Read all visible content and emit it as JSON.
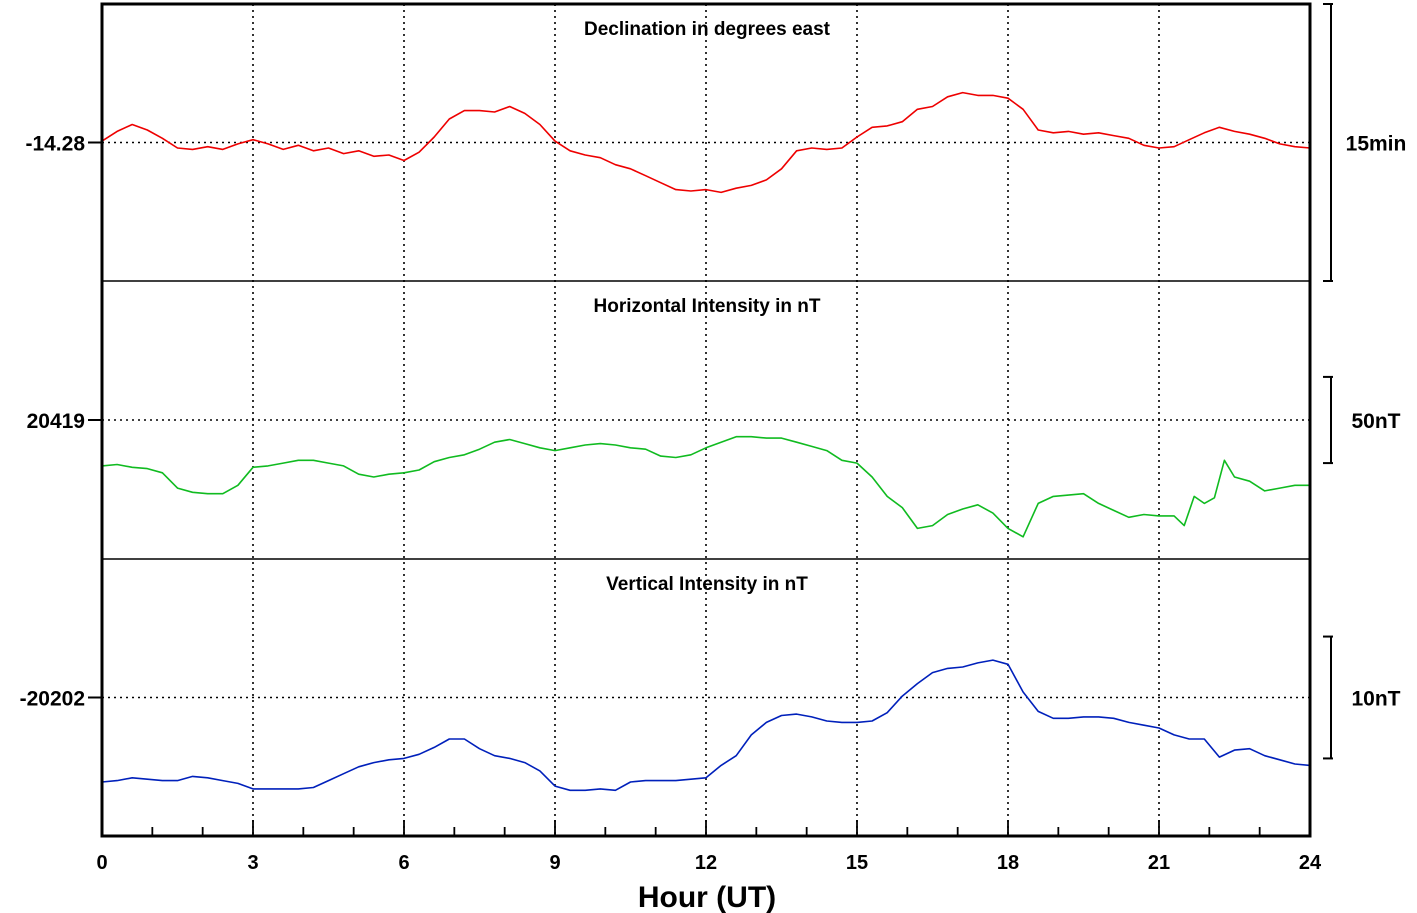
{
  "chart_data": {
    "type": "line",
    "xlabel": "Hour (UT)",
    "xlim": [
      0,
      24
    ],
    "xticks": [
      "0",
      "3",
      "6",
      "9",
      "12",
      "15",
      "18",
      "21",
      "24"
    ],
    "grid": true,
    "panels": [
      {
        "title": "Declination in degrees east",
        "reference_label": "-14.28",
        "scale_label": "15min",
        "color": "#ee0000",
        "yrange": [
          -1,
          1
        ],
        "ref_value": 0,
        "scale_bar": [
          1,
          -1
        ],
        "series": {
          "x": [
            0,
            0.3,
            0.6,
            0.9,
            1.2,
            1.5,
            1.8,
            2.1,
            2.4,
            2.7,
            3,
            3.3,
            3.6,
            3.9,
            4.2,
            4.5,
            4.8,
            5.1,
            5.4,
            5.7,
            6,
            6.3,
            6.6,
            6.9,
            7.2,
            7.5,
            7.8,
            8.1,
            8.4,
            8.7,
            9,
            9.3,
            9.6,
            9.9,
            10.2,
            10.5,
            10.8,
            11.1,
            11.4,
            11.7,
            12,
            12.3,
            12.6,
            12.9,
            13.2,
            13.5,
            13.8,
            14.1,
            14.4,
            14.7,
            15,
            15.3,
            15.6,
            15.9,
            16.2,
            16.5,
            16.8,
            17.1,
            17.4,
            17.7,
            18,
            18.3,
            18.6,
            18.9,
            19.2,
            19.5,
            19.8,
            20.1,
            20.4,
            20.7,
            21,
            21.3,
            21.6,
            21.9,
            22.2,
            22.5,
            22.8,
            23.1,
            23.4,
            23.7,
            24
          ],
          "y": [
            0.01,
            0.08,
            0.13,
            0.09,
            0.03,
            -0.04,
            -0.05,
            -0.03,
            -0.05,
            -0.01,
            0.02,
            -0.01,
            -0.05,
            -0.02,
            -0.06,
            -0.04,
            -0.08,
            -0.06,
            -0.1,
            -0.09,
            -0.13,
            -0.07,
            0.04,
            0.17,
            0.23,
            0.23,
            0.22,
            0.26,
            0.21,
            0.13,
            0.01,
            -0.06,
            -0.09,
            -0.11,
            -0.16,
            -0.19,
            -0.24,
            -0.29,
            -0.34,
            -0.35,
            -0.34,
            -0.36,
            -0.33,
            -0.31,
            -0.27,
            -0.19,
            -0.06,
            -0.04,
            -0.05,
            -0.04,
            0.04,
            0.11,
            0.12,
            0.15,
            0.24,
            0.26,
            0.33,
            0.36,
            0.34,
            0.34,
            0.32,
            0.24,
            0.09,
            0.07,
            0.08,
            0.06,
            0.07,
            0.05,
            0.03,
            -0.02,
            -0.04,
            -0.03,
            0.02,
            0.07,
            0.11,
            0.08,
            0.06,
            0.03,
            -0.01,
            -0.03,
            -0.04
          ]
        }
      },
      {
        "title": "Horizontal Intensity in nT",
        "reference_label": "20419",
        "scale_label": "50nT",
        "color": "#10bb20",
        "yrange": [
          -1,
          1
        ],
        "ref_value": 0,
        "scale_bar": [
          0.31,
          -0.31
        ],
        "series": {
          "x": [
            0,
            0.3,
            0.6,
            0.9,
            1.2,
            1.5,
            1.8,
            2.1,
            2.4,
            2.7,
            3,
            3.3,
            3.6,
            3.9,
            4.2,
            4.5,
            4.8,
            5.1,
            5.4,
            5.7,
            6,
            6.3,
            6.6,
            6.9,
            7.2,
            7.5,
            7.8,
            8.1,
            8.4,
            8.7,
            9,
            9.3,
            9.6,
            9.9,
            10.2,
            10.5,
            10.8,
            11.1,
            11.4,
            11.7,
            12,
            12.3,
            12.6,
            12.9,
            13.2,
            13.5,
            13.8,
            14.1,
            14.4,
            14.7,
            15,
            15.3,
            15.6,
            15.9,
            16.2,
            16.5,
            16.8,
            17.1,
            17.4,
            17.7,
            18,
            18.3,
            18.6,
            18.9,
            19.2,
            19.5,
            19.8,
            20.1,
            20.4,
            20.7,
            21,
            21.3,
            21.5,
            21.7,
            21.9,
            22.1,
            22.3,
            22.5,
            22.8,
            23.1,
            23.4,
            23.7,
            24
          ],
          "y": [
            -0.33,
            -0.32,
            -0.34,
            -0.35,
            -0.38,
            -0.49,
            -0.52,
            -0.53,
            -0.53,
            -0.47,
            -0.34,
            -0.33,
            -0.31,
            -0.29,
            -0.29,
            -0.31,
            -0.33,
            -0.39,
            -0.41,
            -0.39,
            -0.38,
            -0.36,
            -0.3,
            -0.27,
            -0.25,
            -0.21,
            -0.16,
            -0.14,
            -0.17,
            -0.2,
            -0.22,
            -0.2,
            -0.18,
            -0.17,
            -0.18,
            -0.2,
            -0.21,
            -0.26,
            -0.27,
            -0.25,
            -0.2,
            -0.16,
            -0.12,
            -0.12,
            -0.13,
            -0.13,
            -0.16,
            -0.19,
            -0.22,
            -0.29,
            -0.31,
            -0.41,
            -0.55,
            -0.63,
            -0.78,
            -0.76,
            -0.68,
            -0.64,
            -0.61,
            -0.67,
            -0.78,
            -0.84,
            -0.6,
            -0.55,
            -0.54,
            -0.53,
            -0.6,
            -0.65,
            -0.7,
            -0.68,
            -0.69,
            -0.69,
            -0.76,
            -0.55,
            -0.6,
            -0.56,
            -0.29,
            -0.41,
            -0.44,
            -0.51,
            -0.49,
            -0.47,
            -0.47
          ]
        }
      },
      {
        "title": "Vertical Intensity in nT",
        "reference_label": "-20202",
        "scale_label": "10nT",
        "color": "#0020bb",
        "yrange": [
          -1,
          1
        ],
        "ref_value": 0,
        "scale_bar": [
          0.44,
          -0.44
        ],
        "series": {
          "x": [
            0,
            0.3,
            0.6,
            0.9,
            1.2,
            1.5,
            1.8,
            2.1,
            2.4,
            2.7,
            3,
            3.3,
            3.6,
            3.9,
            4.2,
            4.5,
            4.8,
            5.1,
            5.4,
            5.7,
            6,
            6.3,
            6.6,
            6.9,
            7.2,
            7.5,
            7.8,
            8.1,
            8.4,
            8.7,
            9,
            9.3,
            9.6,
            9.9,
            10.2,
            10.5,
            10.8,
            11.1,
            11.4,
            11.7,
            12,
            12.3,
            12.6,
            12.9,
            13.2,
            13.5,
            13.8,
            14.1,
            14.4,
            14.7,
            15,
            15.3,
            15.6,
            15.9,
            16.2,
            16.5,
            16.8,
            17.1,
            17.4,
            17.7,
            18,
            18.3,
            18.6,
            18.9,
            19.2,
            19.5,
            19.8,
            20.1,
            20.4,
            20.7,
            21,
            21.3,
            21.6,
            21.9,
            22.2,
            22.5,
            22.8,
            23.1,
            23.4,
            23.7,
            24
          ],
          "y": [
            -0.61,
            -0.6,
            -0.58,
            -0.59,
            -0.6,
            -0.6,
            -0.57,
            -0.58,
            -0.6,
            -0.62,
            -0.66,
            -0.66,
            -0.66,
            -0.66,
            -0.65,
            -0.6,
            -0.55,
            -0.5,
            -0.47,
            -0.45,
            -0.44,
            -0.41,
            -0.36,
            -0.3,
            -0.3,
            -0.37,
            -0.42,
            -0.44,
            -0.47,
            -0.53,
            -0.64,
            -0.67,
            -0.67,
            -0.66,
            -0.67,
            -0.61,
            -0.6,
            -0.6,
            -0.6,
            -0.59,
            -0.58,
            -0.49,
            -0.42,
            -0.27,
            -0.18,
            -0.13,
            -0.12,
            -0.14,
            -0.17,
            -0.18,
            -0.18,
            -0.17,
            -0.11,
            0.01,
            0.1,
            0.18,
            0.21,
            0.22,
            0.25,
            0.27,
            0.24,
            0.04,
            -0.1,
            -0.15,
            -0.15,
            -0.14,
            -0.14,
            -0.15,
            -0.18,
            -0.2,
            -0.22,
            -0.27,
            -0.3,
            -0.3,
            -0.43,
            -0.38,
            -0.37,
            -0.42,
            -0.45,
            -0.48,
            -0.49
          ]
        }
      }
    ]
  }
}
